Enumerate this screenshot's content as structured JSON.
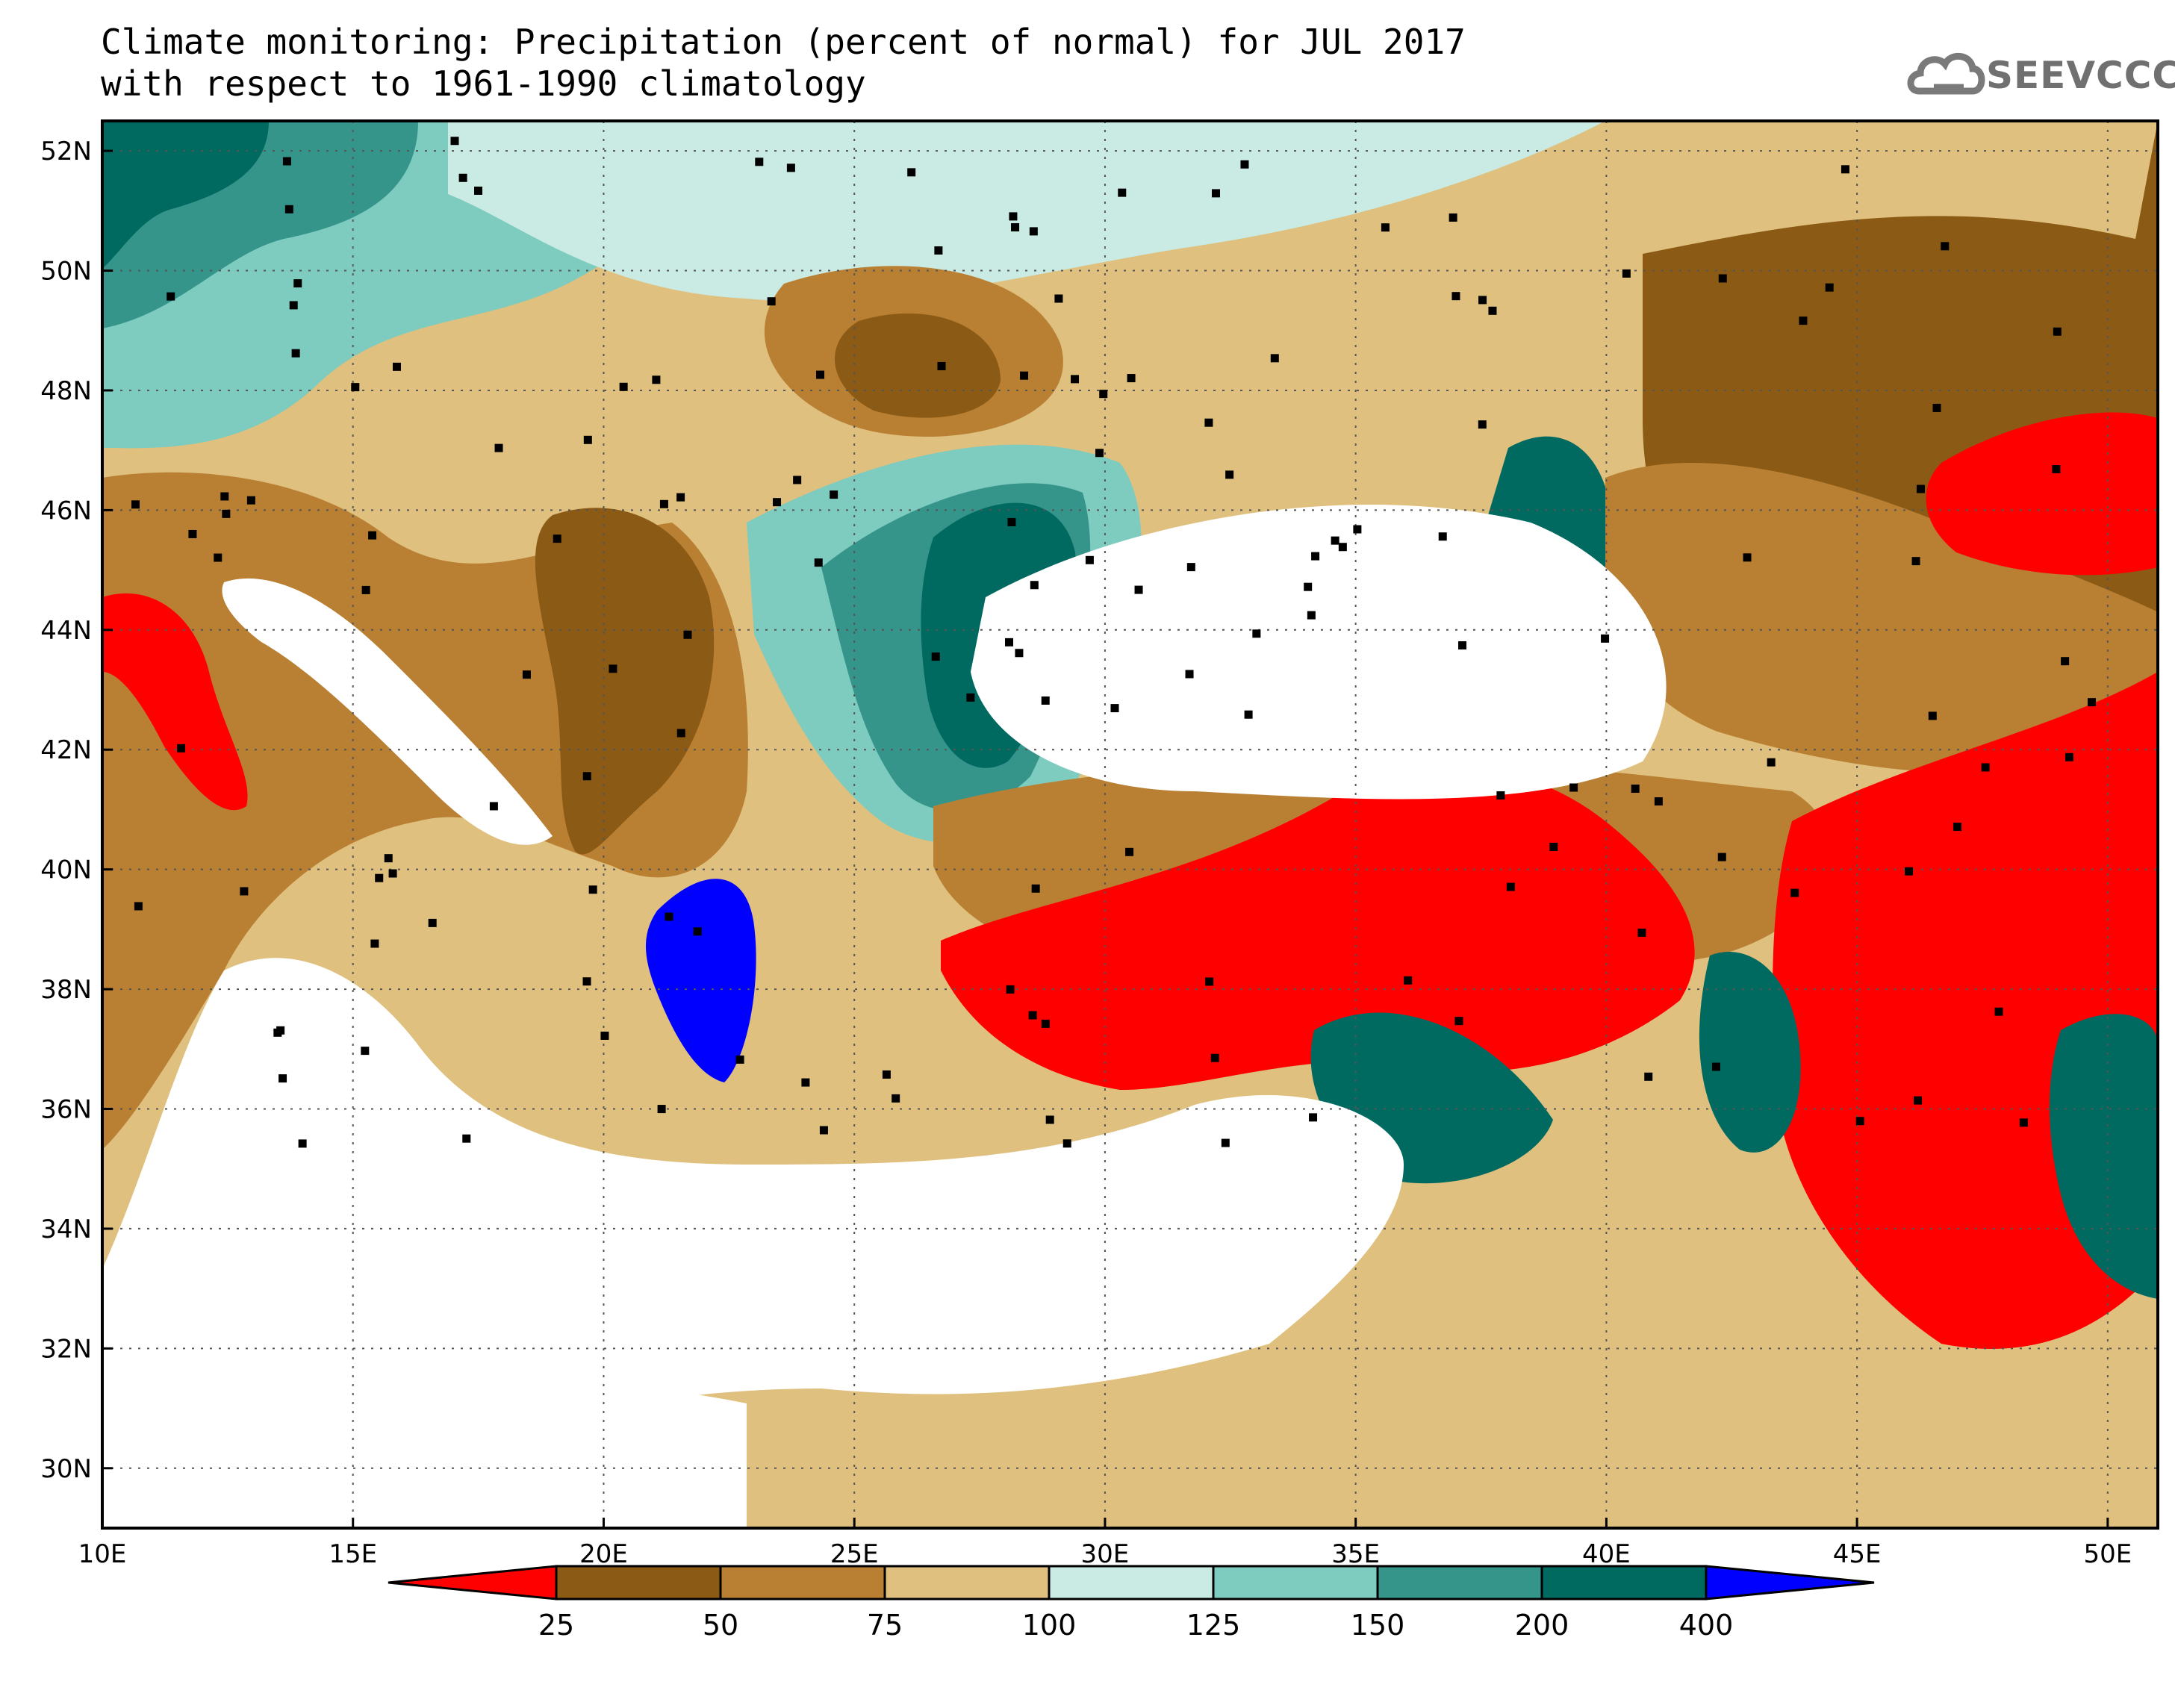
{
  "title": {
    "line1": "Climate monitoring: Precipitation (percent of normal) for JUL 2017",
    "line2": "with respect to 1961-1990 climatology"
  },
  "logo": {
    "text": "SEEVCCC",
    "icon": "cloud-icon"
  },
  "map": {
    "type": "heatmap",
    "lon_range": [
      10,
      51
    ],
    "lat_range": [
      29,
      52.5
    ],
    "lon_ticks": [
      "10E",
      "15E",
      "20E",
      "25E",
      "30E",
      "35E",
      "40E",
      "45E",
      "50E"
    ],
    "lat_ticks": [
      "30N",
      "32N",
      "34N",
      "36N",
      "38N",
      "40N",
      "42N",
      "44N",
      "46N",
      "48N",
      "50N",
      "52N"
    ],
    "grid": true
  },
  "colorbar": {
    "classes": [
      {
        "color": "#ff0000"
      },
      {
        "color": "#8b5a14"
      },
      {
        "color": "#b98034"
      },
      {
        "color": "#dfc07e"
      },
      {
        "color": "#c9ebe3"
      },
      {
        "color": "#7ecbbf"
      },
      {
        "color": "#35958b"
      },
      {
        "color": "#006a61"
      },
      {
        "color": "#0000ff"
      }
    ],
    "boundaries": [
      "25",
      "50",
      "75",
      "100",
      "125",
      "150",
      "200",
      "400"
    ]
  }
}
